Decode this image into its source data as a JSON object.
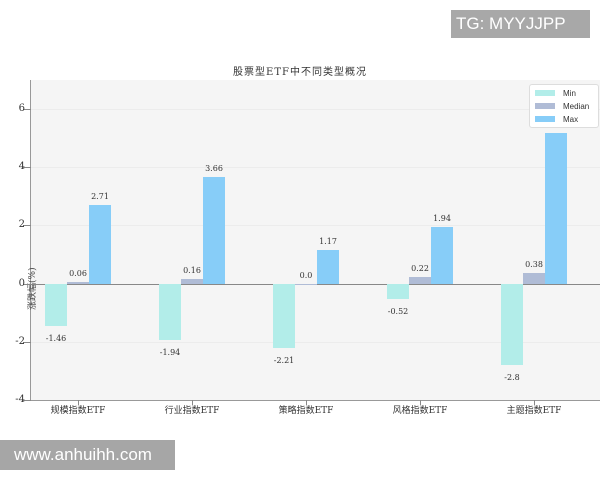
{
  "watermarks": {
    "top_right": "TG: MYYJJPP",
    "bottom_left": "www.anhuihh.com"
  },
  "chart_data": {
    "type": "bar",
    "title": "股票型ETF中不同类型概况",
    "xlabel": "",
    "ylabel": "涨跌幅(%)",
    "ylim": [
      -4,
      7
    ],
    "yticks": [
      -4,
      -2,
      0,
      2,
      4,
      6
    ],
    "grid": true,
    "legend_position": "upper right",
    "categories": [
      "规模指数ETF",
      "行业指数ETF",
      "策略指数ETF",
      "风格指数ETF",
      "主题指数ETF"
    ],
    "series": [
      {
        "name": "Min",
        "color": "#b2ede9",
        "values": [
          -1.46,
          -1.94,
          -2.21,
          -0.52,
          -2.8
        ]
      },
      {
        "name": "Median",
        "color": "#b0bcd6",
        "values": [
          0.06,
          0.16,
          0.0,
          0.22,
          0.38
        ]
      },
      {
        "name": "Max",
        "color": "#87cdf8",
        "values": [
          2.71,
          3.66,
          1.17,
          1.94,
          5.18
        ]
      }
    ],
    "value_labels": {
      "Min": [
        "-1.46",
        "-1.94",
        "-2.21",
        "-0.52",
        "-2.8"
      ],
      "Median": [
        "0.06",
        "0.16",
        "0.0",
        "0.22",
        "0.38"
      ],
      "Max": [
        "2.71",
        "3.66",
        "1.17",
        "1.94",
        "5.18"
      ]
    }
  }
}
